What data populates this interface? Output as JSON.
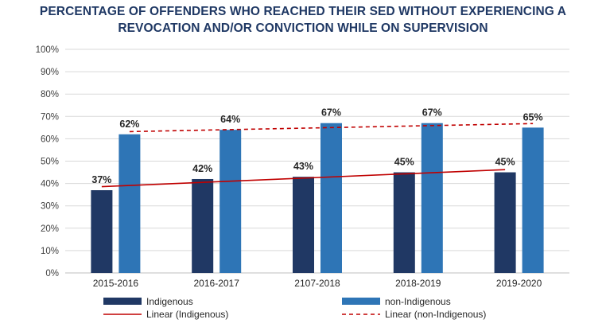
{
  "chart_data": {
    "type": "bar",
    "title_line1": "PERCENTAGE OF OFFENDERS WHO REACHED THEIR SED WITHOUT EXPERIENCING A",
    "title_line2": "REVOCATION AND/OR CONVICTION WHILE ON SUPERVISION",
    "categories": [
      "2015-2016",
      "2016-2017",
      "2107-2018",
      "2018-2019",
      "2019-2020"
    ],
    "series": [
      {
        "name": "Indigenous",
        "values": [
          37,
          42,
          43,
          45,
          45
        ],
        "labels": [
          "37%",
          "42%",
          "43%",
          "45%",
          "45%"
        ],
        "color": "#203864"
      },
      {
        "name": "non-Indigenous",
        "values": [
          62,
          64,
          67,
          67,
          65
        ],
        "labels": [
          "62%",
          "64%",
          "67%",
          "67%",
          "65%"
        ],
        "color": "#2e75b6"
      }
    ],
    "trendlines": [
      {
        "name": "Linear (Indigenous)",
        "series": "Indigenous",
        "color": "#c00000",
        "style": "solid"
      },
      {
        "name": "Linear (non-Indigenous)",
        "series": "non-Indigenous",
        "color": "#c00000",
        "style": "dashed"
      }
    ],
    "ylim": [
      0,
      100
    ],
    "yticks": [
      "0%",
      "10%",
      "20%",
      "30%",
      "40%",
      "50%",
      "60%",
      "70%",
      "80%",
      "90%",
      "100%"
    ],
    "grid": true,
    "legend": "bottom"
  }
}
